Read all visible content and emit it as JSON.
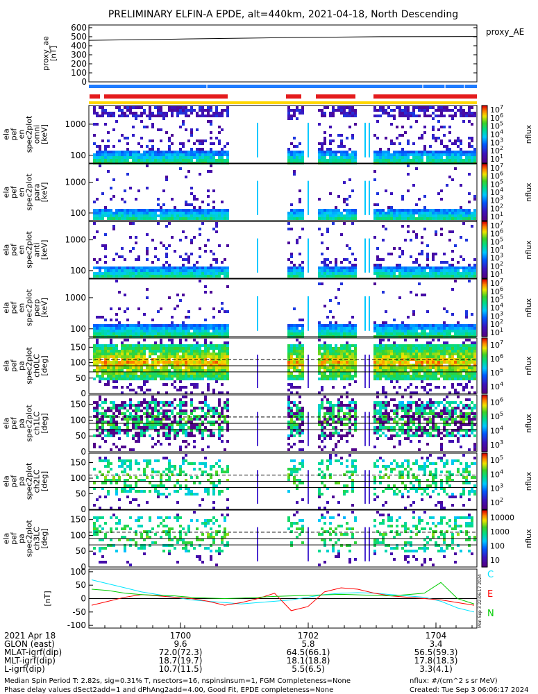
{
  "title": "PRELIMINARY ELFIN-A EPDE, alt=440km, 2021-04-18, North Descending",
  "chart_data": [
    {
      "type": "line",
      "id": "proxy_ae",
      "ylabel_lines": [
        "proxy_ae",
        "[nT]"
      ],
      "legend": "proxy_AE",
      "yticks": [
        "0",
        "100",
        "200",
        "300",
        "400",
        "500",
        "600"
      ],
      "ylim": [
        0,
        630
      ],
      "series": [
        {
          "values": [
            460,
            475,
            490,
            500,
            502
          ]
        }
      ]
    },
    {
      "type": "heatmap",
      "id": "en-spectra",
      "panels": [
        {
          "ylabel_lines": [
            "ela",
            "pef",
            "en",
            "spec2plot",
            "omni",
            "[keV]"
          ],
          "yticks": [
            "100",
            "1000"
          ]
        },
        {
          "ylabel_lines": [
            "ela",
            "pef",
            "en",
            "spec2plot",
            "para",
            "[keV]"
          ],
          "yticks": [
            "100",
            "1000"
          ]
        },
        {
          "ylabel_lines": [
            "ela",
            "pef",
            "en",
            "spec2plot",
            "anti",
            "[keV]"
          ],
          "yticks": [
            "100",
            "1000"
          ]
        },
        {
          "ylabel_lines": [
            "ela",
            "pef",
            "en",
            "spec2plot",
            "perp",
            "[keV]"
          ],
          "yticks": [
            "100",
            "1000"
          ]
        }
      ],
      "colorbar_label": "nflux",
      "colorbar_ticks": [
        "10",
        "10",
        "10",
        "10",
        "10",
        "10",
        "10"
      ],
      "colorbar_exps": [
        "1",
        "2",
        "3",
        "4",
        "5",
        "6",
        "7"
      ]
    },
    {
      "type": "heatmap",
      "id": "pa-spectra",
      "panels": [
        {
          "ylabel_lines": [
            "ela",
            "pef",
            "pa",
            "spec2plot",
            "ch0LC",
            "[deg]"
          ],
          "yticks": [
            "0",
            "50",
            "100",
            "150"
          ],
          "cb_ticks": [
            "10",
            "10",
            "10",
            "10"
          ],
          "cb_exps": [
            "4",
            "5",
            "6",
            "7"
          ]
        },
        {
          "ylabel_lines": [
            "ela",
            "pef",
            "pa",
            "spec2plot",
            "ch1LC",
            "[deg]"
          ],
          "yticks": [
            "0",
            "50",
            "100",
            "150"
          ],
          "cb_ticks": [
            "10",
            "10",
            "10",
            "10"
          ],
          "cb_exps": [
            "3",
            "4",
            "5",
            "6"
          ]
        },
        {
          "ylabel_lines": [
            "ela",
            "pef",
            "pa",
            "spec2plot",
            "ch2LC",
            "[deg]"
          ],
          "yticks": [
            "0",
            "50",
            "100",
            "150"
          ],
          "cb_ticks": [
            "10",
            "10",
            "10",
            "10"
          ],
          "cb_exps": [
            "2",
            "3",
            "4",
            "5"
          ]
        },
        {
          "ylabel_lines": [
            "ela",
            "pef",
            "pa",
            "spec2plot",
            "ch3LC",
            "[deg]"
          ],
          "yticks": [
            "0",
            "50",
            "100",
            "150"
          ],
          "cb_ticks": [
            "10",
            "100",
            "1000",
            "10000"
          ],
          "cb_exps": [
            "",
            "",
            "",
            ""
          ]
        }
      ],
      "colorbar_label": "nflux"
    },
    {
      "type": "line",
      "id": "magnetic-field",
      "ylabel_lines": [
        "[nT]"
      ],
      "yticks": [
        "-100",
        "-50",
        "0",
        "50",
        "100"
      ],
      "ylim": [
        -110,
        110
      ],
      "series": [
        {
          "name": "C",
          "color": "#00e5ff",
          "values": [
            70,
            55,
            40,
            25,
            15,
            5,
            -5,
            -10,
            -15,
            -20,
            -15,
            -10,
            -5,
            5,
            15,
            20,
            22,
            20,
            15,
            10,
            5,
            -10,
            -35,
            -50
          ]
        },
        {
          "name": "E",
          "color": "#ff0000",
          "values": [
            -25,
            -10,
            5,
            15,
            10,
            5,
            0,
            -10,
            -25,
            -15,
            0,
            20,
            -45,
            -30,
            25,
            40,
            35,
            20,
            10,
            5,
            0,
            -5,
            -15,
            -25
          ]
        },
        {
          "name": "N",
          "color": "#00cc00",
          "values": [
            35,
            30,
            20,
            15,
            12,
            10,
            5,
            2,
            0,
            2,
            5,
            8,
            10,
            12,
            14,
            16,
            14,
            12,
            10,
            15,
            20,
            60,
            0,
            -20
          ]
        }
      ]
    }
  ],
  "axis": {
    "x_ticks": [
      "1700",
      "1702",
      "1704"
    ],
    "rows": [
      {
        "label": "2021 Apr 18",
        "values": [
          "",
          "",
          ""
        ]
      },
      {
        "label": "GLON (east)",
        "values": [
          "9.6",
          "5.8",
          "3.4"
        ]
      },
      {
        "label": "MLAT-igrf(dip)",
        "values": [
          "72.0(72.3)",
          "64.5(66.1)",
          "56.5(59.3)"
        ]
      },
      {
        "label": "MLT-igrf(dip)",
        "values": [
          "18.7(19.7)",
          "18.1(18.8)",
          "17.8(18.3)"
        ]
      },
      {
        "label": "L-igrf(dip)",
        "values": [
          "10.7(11.5)",
          "5.5(6.5)",
          "3.3(4.1)"
        ]
      }
    ]
  },
  "footer": {
    "line1": "Median Spin Period T: 2.82s, sig=0.31% T, nsectors=16, nspinsinsum=1, FGM Completeness=None",
    "line2": "Phase delay values dSect2add=1 and dPhAng2add=4.00, Good Fit, EPDE completeness=None",
    "units": "nflux: #/(cm^2 s sr MeV)",
    "created": "Created: Tue Sep  3 06:06:17 2024",
    "side_stamp": "Mon Sep  3 22:06:17 2024"
  }
}
